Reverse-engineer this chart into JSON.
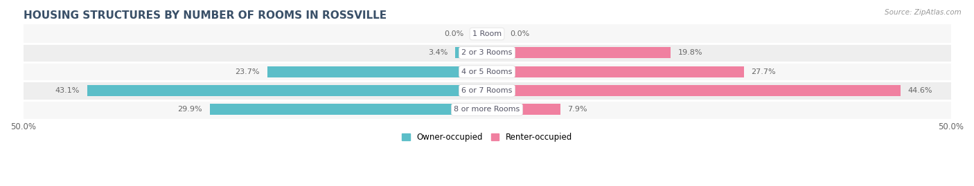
{
  "title": "HOUSING STRUCTURES BY NUMBER OF ROOMS IN ROSSVILLE",
  "source": "Source: ZipAtlas.com",
  "categories": [
    "1 Room",
    "2 or 3 Rooms",
    "4 or 5 Rooms",
    "6 or 7 Rooms",
    "8 or more Rooms"
  ],
  "owner_values": [
    0.0,
    3.4,
    23.7,
    43.1,
    29.9
  ],
  "renter_values": [
    0.0,
    19.8,
    27.7,
    44.6,
    7.9
  ],
  "owner_color": "#5bbec8",
  "renter_color": "#f080a0",
  "row_bg_light": "#f7f7f7",
  "row_bg_dark": "#eeeeee",
  "xlim": 50.0,
  "legend_owner": "Owner-occupied",
  "legend_renter": "Renter-occupied",
  "title_fontsize": 11,
  "label_fontsize": 8.5,
  "bar_height": 0.58,
  "title_color": "#3a5068",
  "label_color": "#666666",
  "source_color": "#999999",
  "cat_label_color": "#555566"
}
